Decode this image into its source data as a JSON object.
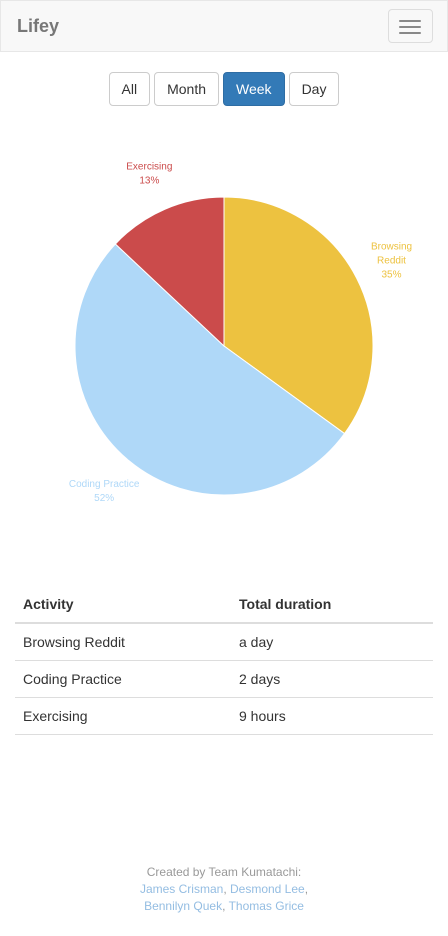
{
  "navbar": {
    "brand": "Lifey",
    "menu_icon": "hamburger-icon"
  },
  "filters": [
    {
      "label": "All",
      "active": false
    },
    {
      "label": "Month",
      "active": false
    },
    {
      "label": "Week",
      "active": true
    },
    {
      "label": "Day",
      "active": false
    }
  ],
  "chart_data": {
    "type": "pie",
    "title": "",
    "slices": [
      {
        "label": "Browsing Reddit",
        "value": 35,
        "display": "35%",
        "color": "#edc240"
      },
      {
        "label": "Coding Practice",
        "value": 52,
        "display": "52%",
        "color": "#afd8f8"
      },
      {
        "label": "Exercising",
        "value": 13,
        "display": "13%",
        "color": "#cb4b4b"
      }
    ]
  },
  "table": {
    "headers": [
      "Activity",
      "Total duration"
    ],
    "rows": [
      [
        "Browsing Reddit",
        "a day"
      ],
      [
        "Coding Practice",
        "2 days"
      ],
      [
        "Exercising",
        "9 hours"
      ]
    ]
  },
  "footer": {
    "credit": "Created by Team Kumatachi:",
    "members": [
      "James Crisman",
      "Desmond Lee",
      "Bennilyn Quek",
      "Thomas Grice"
    ]
  }
}
